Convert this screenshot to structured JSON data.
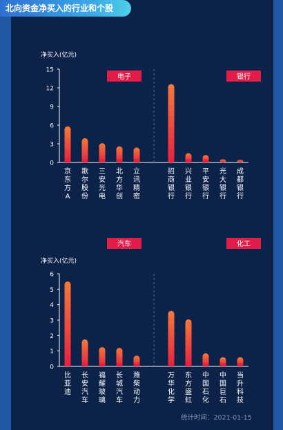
{
  "header": {
    "title": "北向资金净买入的行业和个股"
  },
  "footer": {
    "text": "统计时间：2021-01-15"
  },
  "colors": {
    "background": "#0c2248",
    "bar_top": "#f47a3a",
    "bar_bottom": "#e8203f",
    "tag": "#e21d4a",
    "axis": "#ffffff",
    "divider": "#4b6fa3"
  },
  "chart_data": [
    {
      "type": "bar",
      "ylabel": "净买入(亿元)",
      "ylim": [
        0,
        15
      ],
      "yticks": [
        0,
        3,
        6,
        9,
        12,
        15
      ],
      "groups": [
        {
          "tag": "电子",
          "categories": [
            "京东方A",
            "歌尔股份",
            "三安光电",
            "北方华创",
            "立讯精密"
          ],
          "values": [
            5.8,
            3.9,
            3.1,
            2.6,
            2.4
          ]
        },
        {
          "tag": "银行",
          "categories": [
            "招商银行",
            "兴业银行",
            "平安银行",
            "光大银行",
            "成都银行"
          ],
          "values": [
            12.6,
            1.5,
            1.2,
            0.5,
            0.4
          ]
        }
      ]
    },
    {
      "type": "bar",
      "ylabel": "净买入(亿元)",
      "ylim": [
        0,
        6
      ],
      "yticks": [
        0,
        1,
        2,
        3,
        4,
        5,
        6
      ],
      "groups": [
        {
          "tag": "汽车",
          "categories": [
            "比亚迪",
            "长安汽车",
            "福耀玻璃",
            "长城汽车",
            "潍柴动力"
          ],
          "values": [
            5.5,
            1.75,
            1.25,
            1.2,
            0.7
          ]
        },
        {
          "tag": "化工",
          "categories": [
            "万华化学",
            "东方盛虹",
            "中国石化",
            "中国巨石",
            "当升科技"
          ],
          "values": [
            3.6,
            3.05,
            0.85,
            0.6,
            0.6
          ]
        }
      ]
    }
  ]
}
